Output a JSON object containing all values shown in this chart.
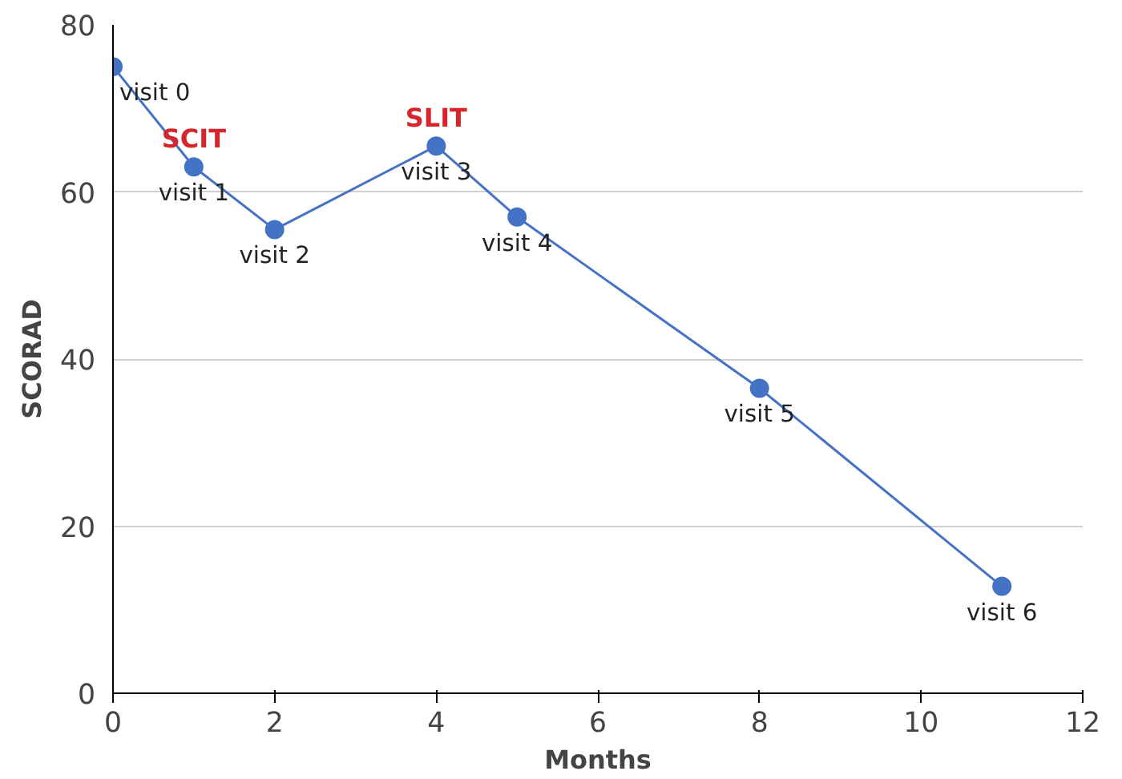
{
  "chart_data": {
    "type": "line",
    "xlabel": "Months",
    "ylabel": "SCORAD",
    "x": [
      0,
      1,
      2,
      4,
      5,
      8,
      11
    ],
    "series": [
      {
        "color": "#4472c4",
        "values": [
          75,
          63,
          55.5,
          65.5,
          57,
          36.5,
          12.8
        ],
        "value_labels": [
          "visit 0",
          "visit 1",
          "visit 2",
          "visit 3",
          "visit 4",
          "visit 5",
          "visit 6"
        ]
      }
    ],
    "marker": "circle",
    "line_style": "solid",
    "xlim": [
      0,
      12
    ],
    "ylim": [
      0,
      80
    ],
    "xticks": [
      0,
      2,
      4,
      6,
      8,
      10,
      12
    ],
    "yticks": [
      0,
      20,
      40,
      60,
      80
    ],
    "grid": "y",
    "annotations": [
      {
        "text": "SCIT",
        "x": 1,
        "y": 63
      },
      {
        "text": "SLIT",
        "x": 4,
        "y": 65.5
      }
    ]
  }
}
